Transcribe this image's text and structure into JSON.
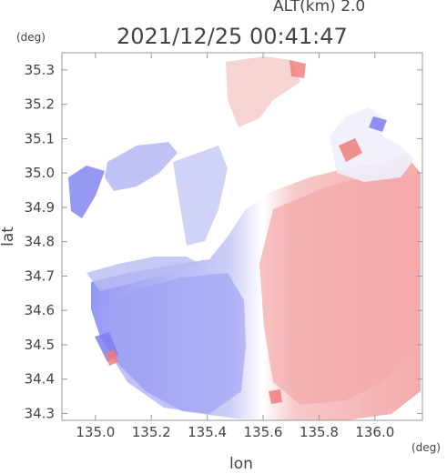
{
  "header": {
    "altitude": "ALT(km) 2.0",
    "timestamp": "2021/12/25 00:41:47"
  },
  "chart_data": {
    "type": "heatmap",
    "title": "2021/12/25 00:41:47",
    "subtitle": "ALT(km) 2.0",
    "xlabel": "lon",
    "ylabel": "lat",
    "x_unit": "(deg)",
    "y_unit": "(deg)",
    "xlim": [
      134.88,
      136.17
    ],
    "ylim": [
      34.28,
      35.35
    ],
    "x_ticks": [
      135.0,
      135.2,
      135.4,
      135.6,
      135.8,
      136.0
    ],
    "x_tick_labels": [
      "135.0",
      "135.2",
      "135.4",
      "135.6",
      "135.8",
      "136.0"
    ],
    "y_ticks": [
      34.3,
      34.4,
      34.5,
      34.6,
      34.7,
      34.8,
      34.9,
      35.0,
      35.1,
      35.2,
      35.3
    ],
    "y_tick_labels": [
      "34.3",
      "34.4",
      "34.5",
      "34.6",
      "34.7",
      "34.8",
      "34.9",
      "35.0",
      "35.1",
      "35.2",
      "35.3"
    ],
    "colors": {
      "negative": "#7b7ff0",
      "neutral": "#ffffff",
      "positive": "#f07b7b"
    },
    "regions": [
      {
        "desc": "south-east half (receding)",
        "sign": "positive",
        "intensity": 0.35
      },
      {
        "desc": "south-west half (approaching)",
        "sign": "negative",
        "intensity": 0.4
      },
      {
        "desc": "north-west fragments",
        "sign": "negative",
        "intensity": 0.5
      },
      {
        "desc": "north strip near 135.6",
        "sign": "positive",
        "intensity": 0.25
      }
    ]
  }
}
